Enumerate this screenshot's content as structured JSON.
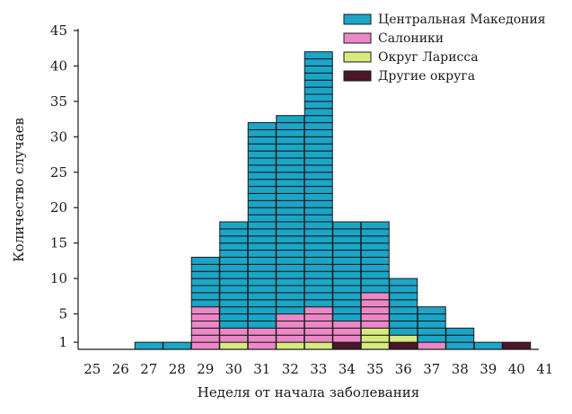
{
  "chart_data": {
    "type": "bar",
    "stacked": true,
    "unit_cells": true,
    "xlabel": "Неделя от начала заболевания",
    "ylabel": "Количество случаев",
    "categories": [
      "25",
      "26",
      "27",
      "28",
      "29",
      "30",
      "31",
      "32",
      "33",
      "34",
      "35",
      "36",
      "37",
      "38",
      "39",
      "40",
      "41"
    ],
    "y_ticks": [
      1,
      5,
      10,
      15,
      20,
      25,
      30,
      35,
      40,
      45
    ],
    "ylim": [
      0,
      45
    ],
    "legend_position": "top-right",
    "series": [
      {
        "name": "Другие округа",
        "color": "#4a1628",
        "values": [
          0,
          0,
          0,
          0,
          0,
          0,
          0,
          0,
          0,
          1,
          0,
          1,
          0,
          0,
          0,
          1,
          0
        ]
      },
      {
        "name": "Округ Ларисса",
        "color": "#d7ea7e",
        "values": [
          0,
          0,
          0,
          0,
          0,
          1,
          0,
          1,
          1,
          0,
          3,
          1,
          0,
          0,
          0,
          0,
          0
        ]
      },
      {
        "name": "Салоники",
        "color": "#ec88c7",
        "values": [
          0,
          0,
          0,
          0,
          6,
          2,
          3,
          4,
          5,
          3,
          5,
          0,
          1,
          0,
          0,
          0,
          0
        ]
      },
      {
        "name": "Центральная Македония",
        "color": "#1ba5c7",
        "values": [
          0,
          0,
          1,
          1,
          7,
          15,
          29,
          28,
          36,
          14,
          10,
          8,
          5,
          3,
          1,
          0,
          0
        ]
      }
    ],
    "legend_order": [
      "Центральная Македония",
      "Салоники",
      "Округ Ларисса",
      "Другие округа"
    ]
  }
}
